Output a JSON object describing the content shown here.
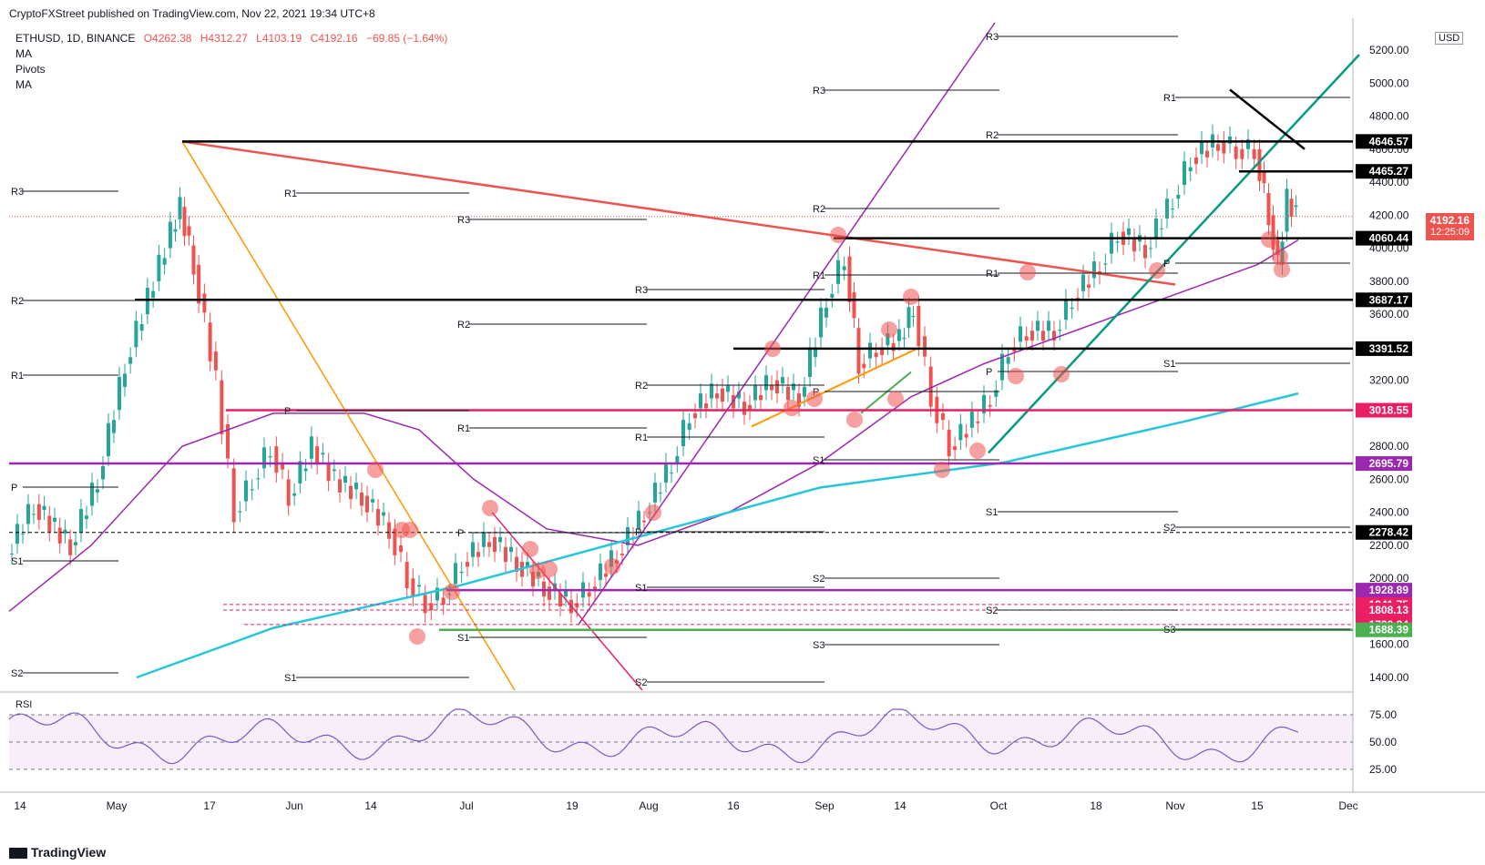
{
  "header": {
    "publisher": "CryptoFXStreet published on TradingView.com, Nov 22, 2021 19:34 UTC+8",
    "symbol": "ETHUSD, 1D, BINANCE",
    "ohlc": {
      "open": "O4262.38",
      "high": "H4312.27",
      "low": "L4103.19",
      "close": "C4192.16",
      "change": "−69.85 (−1.64%)"
    },
    "indicators": [
      "MA",
      "Pivots",
      "MA"
    ],
    "currency": "USD",
    "brand": "TradingView"
  },
  "chart_data": {
    "type": "candlestick",
    "symbol": "ETHUSD",
    "timeframe": "1D",
    "price_axis": {
      "ticks": [
        1400,
        1600,
        1800,
        2000,
        2200,
        2400,
        2600,
        2800,
        3000,
        3200,
        3400,
        3600,
        3800,
        4000,
        4200,
        4400,
        4600,
        4800,
        5000,
        5200
      ]
    },
    "time_axis": {
      "ticks": [
        "14",
        "May",
        "17",
        "Jun",
        "14",
        "Jul",
        "19",
        "Aug",
        "16",
        "Sep",
        "14",
        "Oct",
        "18",
        "Nov",
        "15",
        "Dec"
      ]
    },
    "last_price": {
      "value": "4192.16",
      "countdown": "12:25:09",
      "color": "#ef5350"
    },
    "levels": [
      {
        "price": "4646.57",
        "color": "#000000",
        "style": "solid"
      },
      {
        "price": "4465.27",
        "color": "#000000",
        "style": "solid"
      },
      {
        "price": "4060.44",
        "color": "#000000",
        "style": "solid"
      },
      {
        "price": "3687.17",
        "color": "#000000",
        "style": "solid"
      },
      {
        "price": "3391.52",
        "color": "#000000",
        "style": "solid"
      },
      {
        "price": "3018.55",
        "color": "#e91e63",
        "style": "solid"
      },
      {
        "price": "2695.79",
        "color": "#9c27b0",
        "style": "solid"
      },
      {
        "price": "2278.42",
        "color": "#000000",
        "style": "dashed"
      },
      {
        "price": "1928.89",
        "color": "#9c27b0",
        "style": "solid"
      },
      {
        "price": "1841.75",
        "color": "#e91e63",
        "style": "dashed"
      },
      {
        "price": "1808.13",
        "color": "#e91e63",
        "style": "dashed"
      },
      {
        "price": "1720.84",
        "color": "#e91e63",
        "style": "dashed"
      },
      {
        "price": "1688.39",
        "color": "#4caf50",
        "style": "solid"
      }
    ],
    "pivot_labels": [
      "R3",
      "R2",
      "R1",
      "P",
      "S1",
      "S2",
      "S3"
    ],
    "rsi": {
      "ticks": [
        "75.00",
        "50.00",
        "25.00"
      ]
    },
    "colors": {
      "up": "#26a69a",
      "down": "#ef5350",
      "ma_purple": "#9c27b0",
      "ma_cyan": "#26c6da"
    }
  }
}
